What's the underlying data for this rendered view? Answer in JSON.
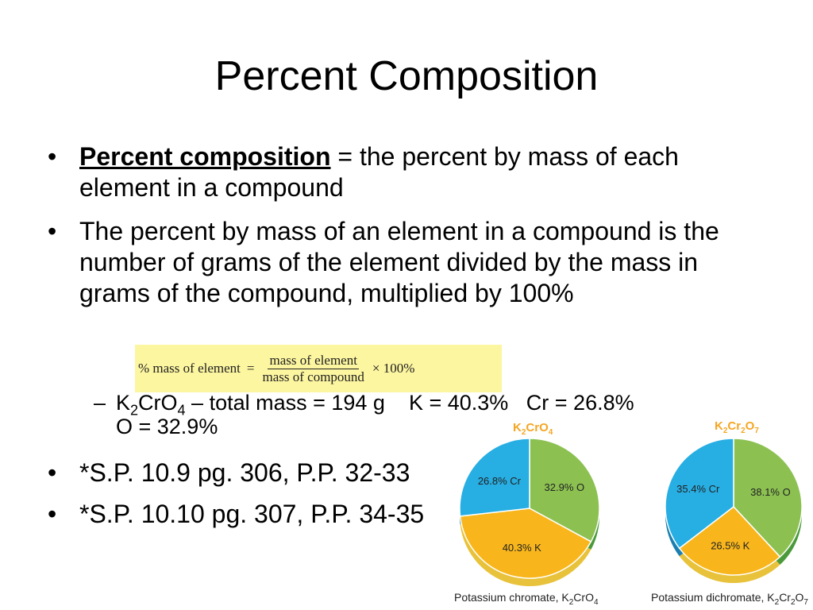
{
  "slide": {
    "title": "Percent Composition",
    "bullet1_term": "Percent composition",
    "bullet1_rest": " = the percent by mass of each element in a compound",
    "bullet2": "The percent by mass of an element in a compound is the number of grams of the element divided by the mass in grams of the compound, multiplied by 100%",
    "bullet_glyph": "•",
    "dash_glyph": "–"
  },
  "formula": {
    "lhs": "% mass of element",
    "equals": "=",
    "numerator": "mass of element",
    "denominator": "mass of compound",
    "times": "× 100%"
  },
  "sub_bullet": {
    "formula_k": "K",
    "formula_k_sub": "2",
    "formula_cr": "CrO",
    "formula_o_sub": "4",
    "text": " – total mass = 194 g    K = 40.3%   Cr = 26.8%",
    "line2": "O = 32.9%"
  },
  "practice": [
    "*S.P. 10.9 pg. 306, P.P. 32-33",
    "*S.P. 10.10 pg. 307, P.P. 34-35"
  ],
  "colors": {
    "O": "#8cc152",
    "O_side": "#4a9a3a",
    "K": "#f8b61c",
    "K_side": "#e8c23a",
    "Cr": "#27aee3",
    "Cr_side": "#1a7fb0",
    "title": "#f5a623",
    "highlight": "#fdf6a0"
  },
  "chart_data": [
    {
      "type": "pie",
      "title_parts": {
        "a": "K",
        "a_sub": "2",
        "b": "CrO",
        "b_sub": "4"
      },
      "caption": "Potassium chromate, K",
      "caption_sub1": "2",
      "caption_mid": "CrO",
      "caption_sub2": "4",
      "slices": [
        {
          "element": "O",
          "value": 32.9,
          "label": "32.9% O"
        },
        {
          "element": "K",
          "value": 40.3,
          "label": "40.3% K"
        },
        {
          "element": "Cr",
          "value": 26.8,
          "label": "26.8% Cr"
        }
      ]
    },
    {
      "type": "pie",
      "title_parts": {
        "a": "K",
        "a_sub": "2",
        "b": "Cr",
        "b_sub": "2",
        "c": "O",
        "c_sub": "7"
      },
      "caption": "Potassium dichromate, K",
      "caption_sub1": "2",
      "caption_mid": "Cr",
      "caption_sub2": "2",
      "caption_end": "O",
      "caption_sub3": "7",
      "slices": [
        {
          "element": "O",
          "value": 38.1,
          "label": "38.1% O"
        },
        {
          "element": "K",
          "value": 26.5,
          "label": "26.5% K"
        },
        {
          "element": "Cr",
          "value": 35.4,
          "label": "35.4% Cr"
        }
      ]
    }
  ]
}
